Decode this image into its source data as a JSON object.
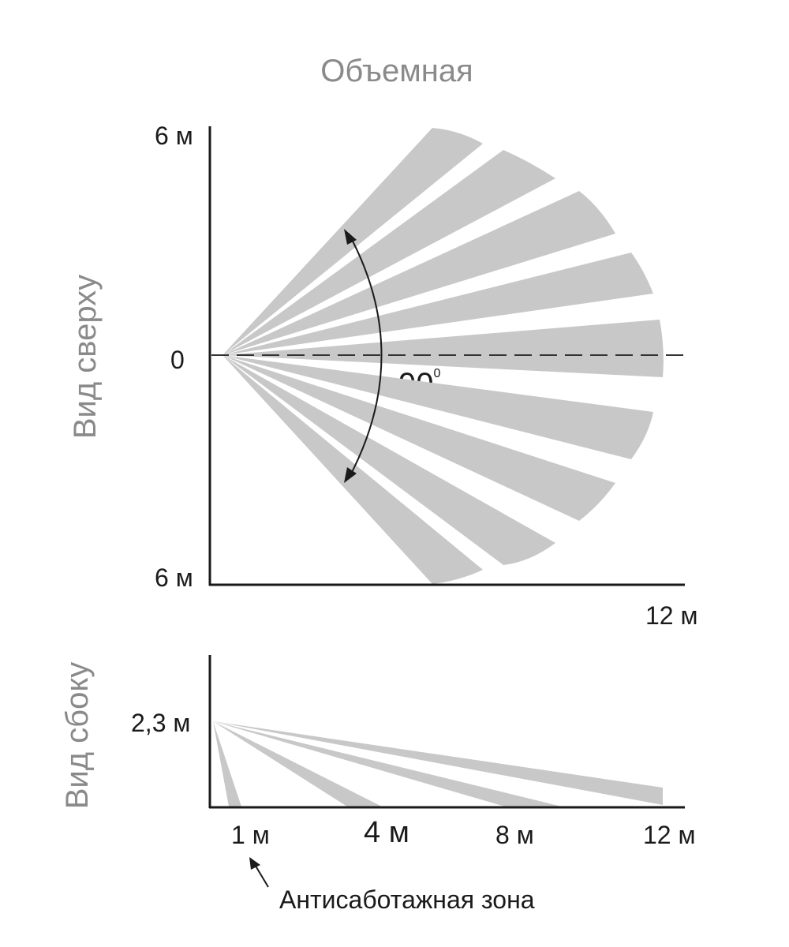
{
  "title": "Объемная",
  "top_view": {
    "label": "Вид сверху",
    "y_top_label": "6 м",
    "y_mid_label": "0",
    "y_bottom_label": "6 м",
    "x_end_label": "12 м",
    "angle_value": "90",
    "angle_unit": "0",
    "beam_count": 10,
    "beam_color": "#c8c8c8",
    "axis_color": "#1a1a1a"
  },
  "side_view": {
    "label": "Вид сбоку",
    "height_label": "2,3 м",
    "x_labels": [
      "1 м",
      "4 м",
      "8 м",
      "12 м"
    ],
    "beam_color": "#c8c8c8"
  },
  "annotation": {
    "text": "Антисаботажная зона",
    "arrow_icon": "arrow-up-left-icon"
  }
}
